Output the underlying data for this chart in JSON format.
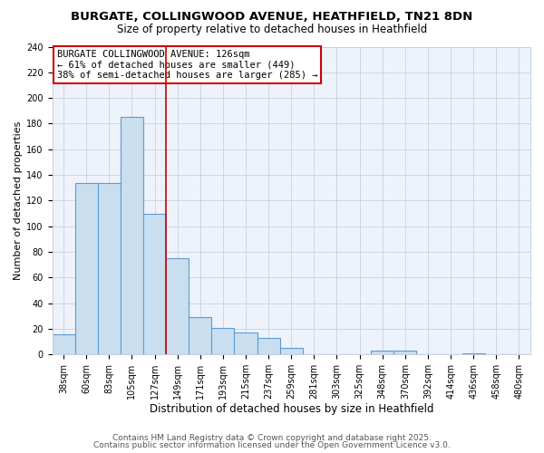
{
  "title": "BURGATE, COLLINGWOOD AVENUE, HEATHFIELD, TN21 8DN",
  "subtitle": "Size of property relative to detached houses in Heathfield",
  "xlabel": "Distribution of detached houses by size in Heathfield",
  "ylabel": "Number of detached properties",
  "bar_labels": [
    "38sqm",
    "60sqm",
    "83sqm",
    "105sqm",
    "127sqm",
    "149sqm",
    "171sqm",
    "193sqm",
    "215sqm",
    "237sqm",
    "259sqm",
    "281sqm",
    "303sqm",
    "325sqm",
    "348sqm",
    "370sqm",
    "392sqm",
    "414sqm",
    "436sqm",
    "458sqm",
    "480sqm"
  ],
  "bar_values": [
    16,
    134,
    134,
    185,
    110,
    75,
    29,
    21,
    17,
    13,
    5,
    0,
    0,
    0,
    3,
    3,
    0,
    0,
    1,
    0,
    0
  ],
  "bar_color": "#c9dff0",
  "bar_edge_color": "#5b9bd5",
  "vline_index": 4,
  "vline_color": "#cc0000",
  "ylim_max": 240,
  "yticks": [
    0,
    20,
    40,
    60,
    80,
    100,
    120,
    140,
    160,
    180,
    200,
    220,
    240
  ],
  "annotation_title": "BURGATE COLLINGWOOD AVENUE: 126sqm",
  "annotation_line1": "← 61% of detached houses are smaller (449)",
  "annotation_line2": "38% of semi-detached houses are larger (285) →",
  "annotation_box_color": "#ffffff",
  "annotation_border_color": "#cc0000",
  "footer_line1": "Contains HM Land Registry data © Crown copyright and database right 2025.",
  "footer_line2": "Contains public sector information licensed under the Open Government Licence v3.0.",
  "bg_color": "#ffffff",
  "plot_bg_color": "#eef2fb",
  "grid_color": "#c8d0e0",
  "title_fontsize": 9.5,
  "subtitle_fontsize": 8.5,
  "xlabel_fontsize": 8.5,
  "ylabel_fontsize": 8,
  "tick_fontsize": 7,
  "annotation_fontsize": 7.5,
  "footer_fontsize": 6.5
}
